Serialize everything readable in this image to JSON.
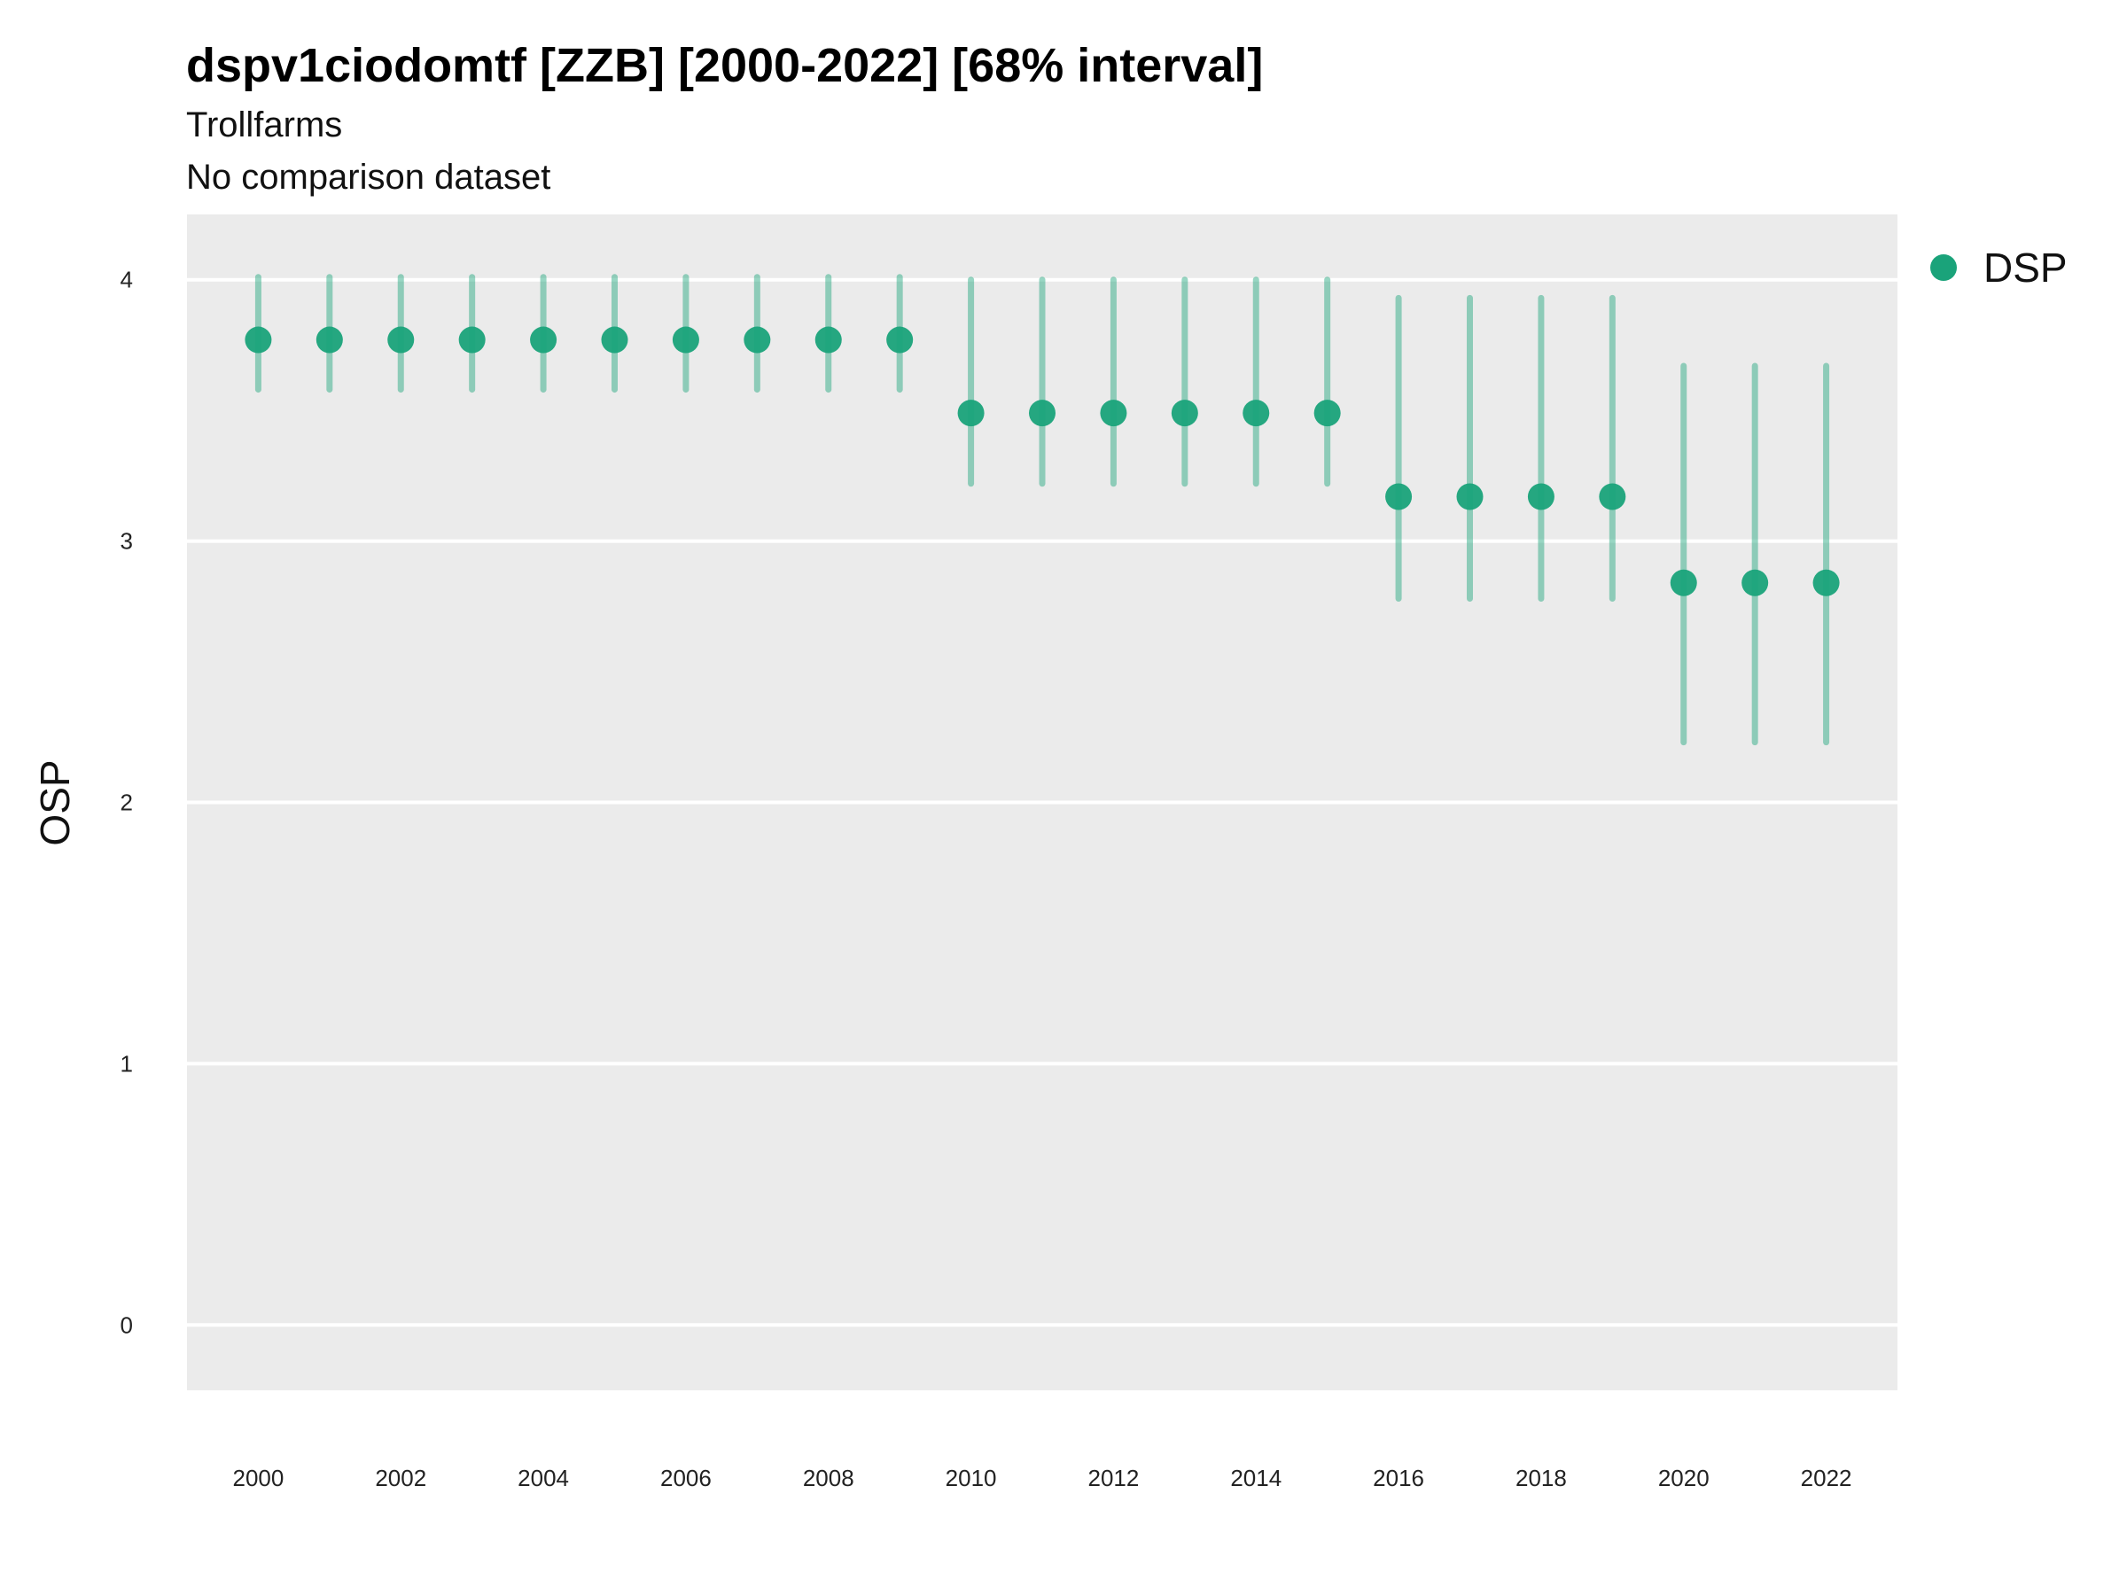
{
  "chart_data": {
    "type": "scatter",
    "title": "dspv1ciodomtf [ZZB] [2000-2022] [68% interval]",
    "subtitle": "Trollfarms",
    "subtitle2": "No comparison dataset",
    "xlabel": "",
    "ylabel": "OSP",
    "xlim": [
      1999,
      2023
    ],
    "ylim": [
      -0.25,
      4.25
    ],
    "x_ticks": [
      "2000",
      "2002",
      "2004",
      "2006",
      "2008",
      "2010",
      "2012",
      "2014",
      "2016",
      "2018",
      "2020",
      "2022"
    ],
    "y_ticks": [
      "0",
      "1",
      "2",
      "3",
      "4"
    ],
    "grid": true,
    "legend_position": "right",
    "series": [
      {
        "name": "DSP",
        "color": "#1aa37a",
        "x": [
          2000,
          2001,
          2002,
          2003,
          2004,
          2005,
          2006,
          2007,
          2008,
          2009,
          2010,
          2011,
          2012,
          2013,
          2014,
          2015,
          2016,
          2017,
          2018,
          2019,
          2020,
          2021,
          2022
        ],
        "y": [
          3.77,
          3.77,
          3.77,
          3.77,
          3.77,
          3.77,
          3.77,
          3.77,
          3.77,
          3.77,
          3.49,
          3.49,
          3.49,
          3.49,
          3.49,
          3.49,
          3.17,
          3.17,
          3.17,
          3.17,
          2.84,
          2.84,
          2.84
        ],
        "lower": [
          3.58,
          3.58,
          3.58,
          3.58,
          3.58,
          3.58,
          3.58,
          3.58,
          3.58,
          3.58,
          3.22,
          3.22,
          3.22,
          3.22,
          3.22,
          3.22,
          2.78,
          2.78,
          2.78,
          2.78,
          2.23,
          2.23,
          2.23
        ],
        "upper": [
          4.01,
          4.01,
          4.01,
          4.01,
          4.01,
          4.01,
          4.01,
          4.01,
          4.01,
          4.01,
          4.0,
          4.0,
          4.0,
          4.0,
          4.0,
          4.0,
          3.93,
          3.93,
          3.93,
          3.93,
          3.67,
          3.67,
          3.67
        ]
      }
    ]
  }
}
